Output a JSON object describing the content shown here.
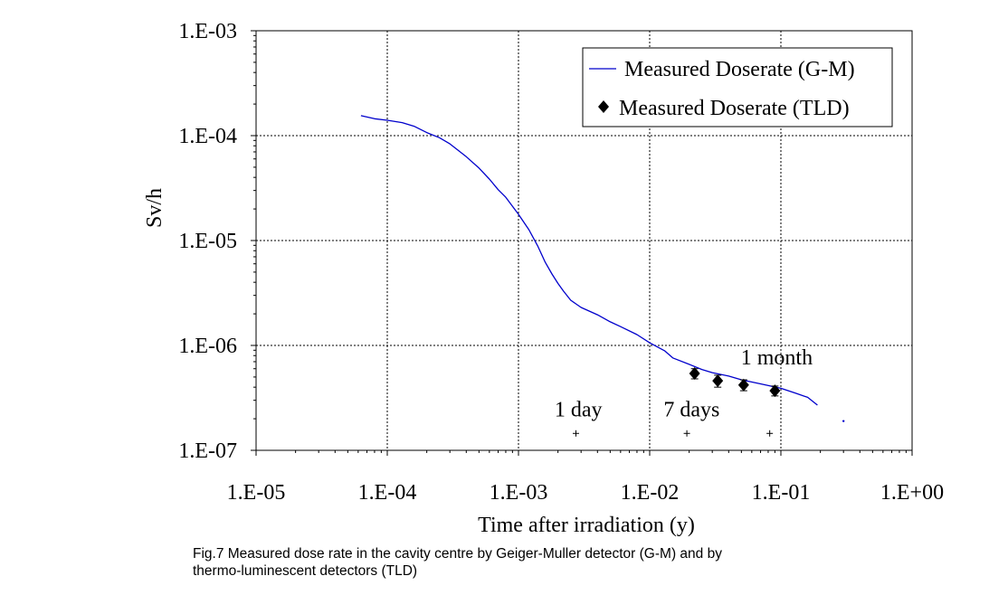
{
  "chart_data": {
    "type": "line",
    "title": "",
    "xlabel": "Time after irradiation (y)",
    "ylabel": "Sv/h",
    "x_scale": "log",
    "y_scale": "log",
    "xlim": [
      1e-05,
      1
    ],
    "ylim": [
      1e-07,
      0.001
    ],
    "x_tick_values": [
      1e-05,
      0.0001,
      0.001,
      0.01,
      0.1,
      1
    ],
    "x_tick_labels": [
      "1.E-05",
      "1.E-04",
      "1.E-03",
      "1.E-02",
      "1.E-01",
      "1.E+00"
    ],
    "y_tick_values": [
      0.001,
      0.0001,
      1e-05,
      1e-06,
      1e-07
    ],
    "y_tick_labels": [
      "1.E-03",
      "1.E-04",
      "1.E-05",
      "1.E-06",
      "1.E-07"
    ],
    "grid": true,
    "legend_position": "top-right",
    "series": [
      {
        "name": "Measured Doserate (G-M)",
        "kind": "line",
        "color": "#0000cc",
        "x": [
          6.3e-05,
          8e-05,
          0.0001,
          0.00013,
          0.00016,
          0.0002,
          0.00025,
          0.0003,
          0.0004,
          0.0005,
          0.0006,
          0.0007,
          0.0008,
          0.001,
          0.0012,
          0.0014,
          0.0016,
          0.0018,
          0.002,
          0.0022,
          0.0025,
          0.003,
          0.004,
          0.005,
          0.006,
          0.008,
          0.01,
          0.013,
          0.015,
          0.02,
          0.025,
          0.03,
          0.04,
          0.05,
          0.07,
          0.1,
          0.13,
          0.16,
          0.19
        ],
        "y": [
          0.000155,
          0.000145,
          0.00014,
          0.000133,
          0.000123,
          0.000107,
          9.55e-05,
          8.34e-05,
          6.3e-05,
          4.9e-05,
          3.86e-05,
          3.06e-05,
          2.59e-05,
          1.78e-05,
          1.27e-05,
          8.9e-06,
          6.2e-06,
          4.8e-06,
          3.9e-06,
          3.3e-06,
          2.7e-06,
          2.3e-06,
          1.96e-06,
          1.68e-06,
          1.51e-06,
          1.27e-06,
          1.06e-06,
          8.9e-07,
          7.6e-07,
          6.6e-07,
          5.9e-07,
          5.5e-07,
          5.1e-07,
          4.7e-07,
          4.3e-07,
          3.9e-07,
          3.5e-07,
          3.2e-07,
          2.7e-07
        ],
        "isolated_point": {
          "x": 0.3,
          "y": 1.9e-07
        }
      },
      {
        "name": "Measured Doserate (TLD)",
        "kind": "scatter",
        "marker": "diamond",
        "color": "#000000",
        "x": [
          0.022,
          0.033,
          0.052,
          0.09
        ],
        "y": [
          5.4e-07,
          4.6e-07,
          4.2e-07,
          3.7e-07
        ],
        "err_low": [
          4.8e-07,
          4e-07,
          3.7e-07,
          3.3e-07
        ],
        "err_high": [
          6e-07,
          5.2e-07,
          4.7e-07,
          4.1e-07
        ]
      }
    ],
    "annotations": [
      {
        "text": "1 day",
        "mark_x": 0.00274,
        "mark_y": 1.45e-07,
        "label_x": 0.00286,
        "label_y": 2.1e-07
      },
      {
        "text": "7 days",
        "mark_x": 0.0192,
        "mark_y": 1.45e-07,
        "label_x": 0.0209,
        "label_y": 2.1e-07
      },
      {
        "text": "1 month",
        "mark_x": 0.0822,
        "mark_y": 1.45e-07,
        "label_x": 0.093,
        "label_y": 6.6e-07
      }
    ]
  },
  "caption": {
    "line1": "Fig.7 Measured dose rate in the cavity centre by Geiger-Muller detector (G-M) and by",
    "line2": "thermo-luminescent detectors (TLD)"
  }
}
